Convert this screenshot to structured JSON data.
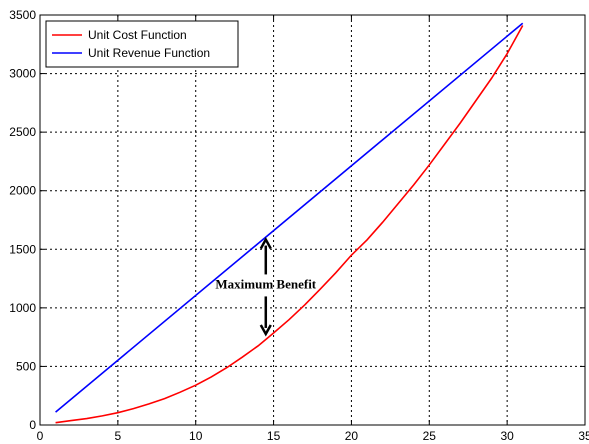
{
  "chart_data": {
    "type": "line",
    "title": "",
    "xlabel": "",
    "ylabel": "",
    "xlim": [
      0,
      35
    ],
    "ylim": [
      0,
      3500
    ],
    "xticks": [
      0,
      5,
      10,
      15,
      20,
      25,
      30,
      35
    ],
    "yticks": [
      0,
      500,
      1000,
      1500,
      2000,
      2500,
      3000,
      3500
    ],
    "grid": true,
    "grid_style": "dashed",
    "legend_position": "top-left",
    "series": [
      {
        "name": "Unit Cost Function",
        "color": "#ff0000",
        "x": [
          1,
          2,
          3,
          4,
          5,
          6,
          7,
          8,
          9,
          10,
          11,
          12,
          13,
          14,
          15,
          16,
          17,
          18,
          19,
          20,
          21,
          22,
          23,
          24,
          25,
          26,
          27,
          28,
          29,
          30,
          31
        ],
        "y": [
          20,
          38,
          55,
          78,
          105,
          140,
          180,
          225,
          280,
          340,
          410,
          490,
          580,
          675,
          785,
          900,
          1025,
          1160,
          1300,
          1450,
          1580,
          1730,
          1890,
          2050,
          2220,
          2400,
          2580,
          2770,
          2960,
          3170,
          3410
        ]
      },
      {
        "name": "Unit Revenue Function",
        "color": "#0000ff",
        "x": [
          1,
          31
        ],
        "y": [
          110,
          3430
        ]
      }
    ],
    "annotations": [
      {
        "text": "Maximum Benefit",
        "x": 14.5,
        "y": 1200,
        "arrow_up_to": 1600,
        "arrow_down_to": 760
      }
    ]
  }
}
